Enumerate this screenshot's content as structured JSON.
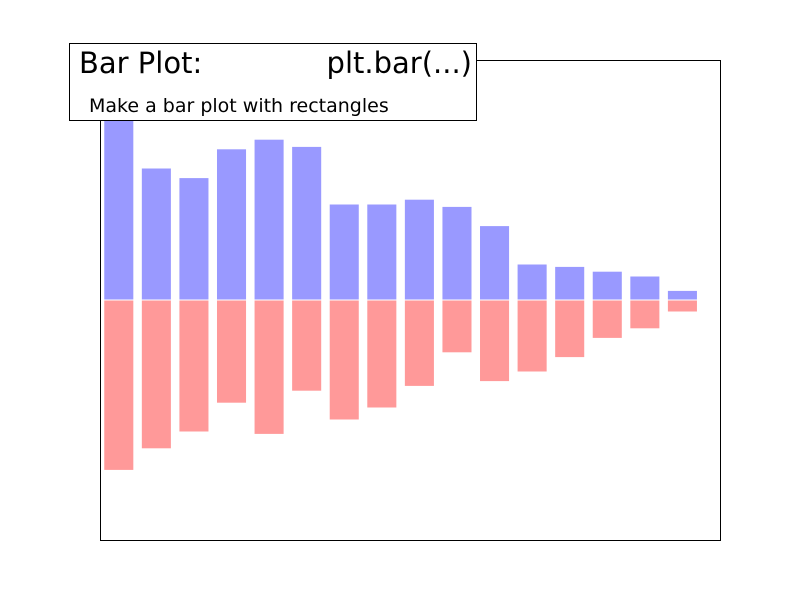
{
  "header": {
    "title": "Bar Plot:",
    "call": "plt.bar(...)",
    "subtitle": "Make a bar plot with rectangles"
  },
  "chart_data": {
    "type": "bar",
    "x": [
      0,
      1,
      2,
      3,
      4,
      5,
      6,
      7,
      8,
      9,
      10,
      11,
      12,
      13,
      14,
      15
    ],
    "series": [
      {
        "values": [
          0.83,
          0.55,
          0.51,
          0.63,
          0.67,
          0.64,
          0.4,
          0.4,
          0.42,
          0.39,
          0.31,
          0.15,
          0.14,
          0.12,
          0.1,
          0.04
        ],
        "color": "#9999ff"
      },
      {
        "values": [
          -0.71,
          -0.62,
          -0.55,
          -0.43,
          -0.56,
          -0.38,
          -0.5,
          -0.45,
          -0.36,
          -0.22,
          -0.34,
          -0.3,
          -0.24,
          -0.16,
          -0.12,
          -0.05
        ],
        "color": "#ff9999"
      }
    ],
    "xlim": [
      -0.5,
      16
    ],
    "ylim": [
      -1,
      1
    ],
    "axes_visible": false,
    "grid": false,
    "bar_edgecolor": "#ffffff"
  }
}
